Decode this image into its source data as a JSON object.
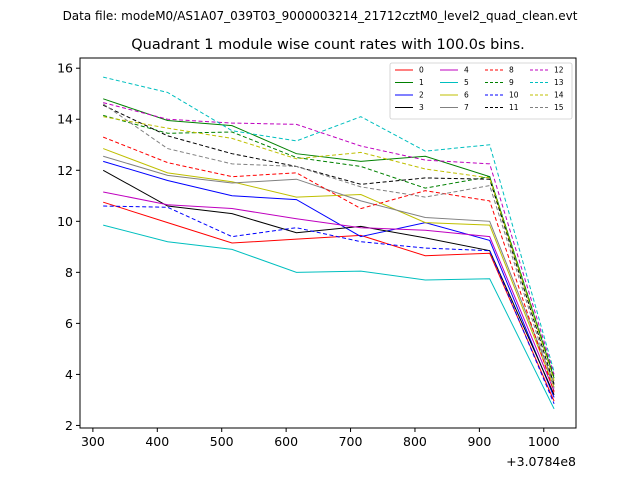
{
  "chart_data": {
    "type": "line",
    "suptitle": "Data file: modeM0/AS1A07_039T03_9000003214_21712cztM0_level2_quad_clean.evt",
    "title": "Quadrant 1 module wise count rates with 100.0s bins.",
    "xlabel": "",
    "ylabel": "",
    "x_offset_label": "+3.0784e8",
    "x": [
      316,
      416,
      516,
      616,
      716,
      816,
      916,
      1016
    ],
    "xlim": [
      280,
      1050
    ],
    "ylim": [
      1.9,
      16.4
    ],
    "xticks": [
      300,
      400,
      500,
      600,
      700,
      800,
      900,
      1000
    ],
    "yticks": [
      2,
      4,
      6,
      8,
      10,
      12,
      14,
      16
    ],
    "legend_position": "top-right",
    "series": [
      {
        "name": "0",
        "color": "#ff0000",
        "dash": "solid",
        "values": [
          10.75,
          9.95,
          9.15,
          9.3,
          9.45,
          8.65,
          8.75,
          2.95
        ]
      },
      {
        "name": "1",
        "color": "#008000",
        "dash": "solid",
        "values": [
          14.8,
          13.95,
          13.75,
          12.65,
          12.35,
          12.55,
          11.75,
          3.85
        ]
      },
      {
        "name": "2",
        "color": "#0000ff",
        "dash": "solid",
        "values": [
          12.35,
          11.6,
          11.0,
          10.85,
          9.4,
          9.95,
          9.25,
          3.1
        ]
      },
      {
        "name": "3",
        "color": "#000000",
        "dash": "solid",
        "values": [
          12.0,
          10.6,
          10.3,
          9.55,
          9.8,
          9.35,
          8.85,
          3.2
        ]
      },
      {
        "name": "4",
        "color": "#bf00bf",
        "dash": "solid",
        "values": [
          11.15,
          10.65,
          10.5,
          10.1,
          9.75,
          9.65,
          9.4,
          3.35
        ]
      },
      {
        "name": "5",
        "color": "#00bfbf",
        "dash": "solid",
        "values": [
          9.85,
          9.2,
          8.9,
          8.0,
          8.05,
          7.7,
          7.75,
          2.65
        ]
      },
      {
        "name": "6",
        "color": "#bfbf00",
        "dash": "solid",
        "values": [
          12.85,
          11.9,
          11.55,
          10.95,
          11.05,
          9.95,
          9.85,
          3.5
        ]
      },
      {
        "name": "7",
        "color": "#808080",
        "dash": "solid",
        "values": [
          12.55,
          11.8,
          11.5,
          11.65,
          10.8,
          10.15,
          10.0,
          3.65
        ]
      },
      {
        "name": "8",
        "color": "#ff0000",
        "dash": "dashed",
        "values": [
          13.3,
          12.3,
          11.75,
          11.9,
          10.5,
          11.2,
          10.8,
          3.3
        ]
      },
      {
        "name": "9",
        "color": "#008000",
        "dash": "dashed",
        "values": [
          14.15,
          13.45,
          13.5,
          12.5,
          12.15,
          11.3,
          11.75,
          3.9
        ]
      },
      {
        "name": "10",
        "color": "#0000ff",
        "dash": "dashed",
        "values": [
          10.6,
          10.55,
          9.4,
          9.75,
          9.2,
          8.95,
          8.85,
          2.85
        ]
      },
      {
        "name": "11",
        "color": "#000000",
        "dash": "dashed",
        "values": [
          14.55,
          13.35,
          12.65,
          12.15,
          11.45,
          11.7,
          11.65,
          3.6
        ]
      },
      {
        "name": "12",
        "color": "#bf00bf",
        "dash": "dashed",
        "values": [
          14.65,
          14.0,
          13.85,
          13.8,
          12.95,
          12.4,
          12.25,
          4.0
        ]
      },
      {
        "name": "13",
        "color": "#00bfbf",
        "dash": "dashed",
        "values": [
          15.65,
          15.05,
          13.55,
          13.15,
          14.1,
          12.75,
          13.0,
          4.1
        ]
      },
      {
        "name": "14",
        "color": "#bfbf00",
        "dash": "dashed",
        "values": [
          14.1,
          13.65,
          13.25,
          12.45,
          12.7,
          12.05,
          11.7,
          3.75
        ]
      },
      {
        "name": "15",
        "color": "#808080",
        "dash": "dashed",
        "values": [
          14.6,
          12.85,
          12.25,
          12.15,
          11.35,
          10.95,
          11.4,
          3.45
        ]
      }
    ]
  }
}
